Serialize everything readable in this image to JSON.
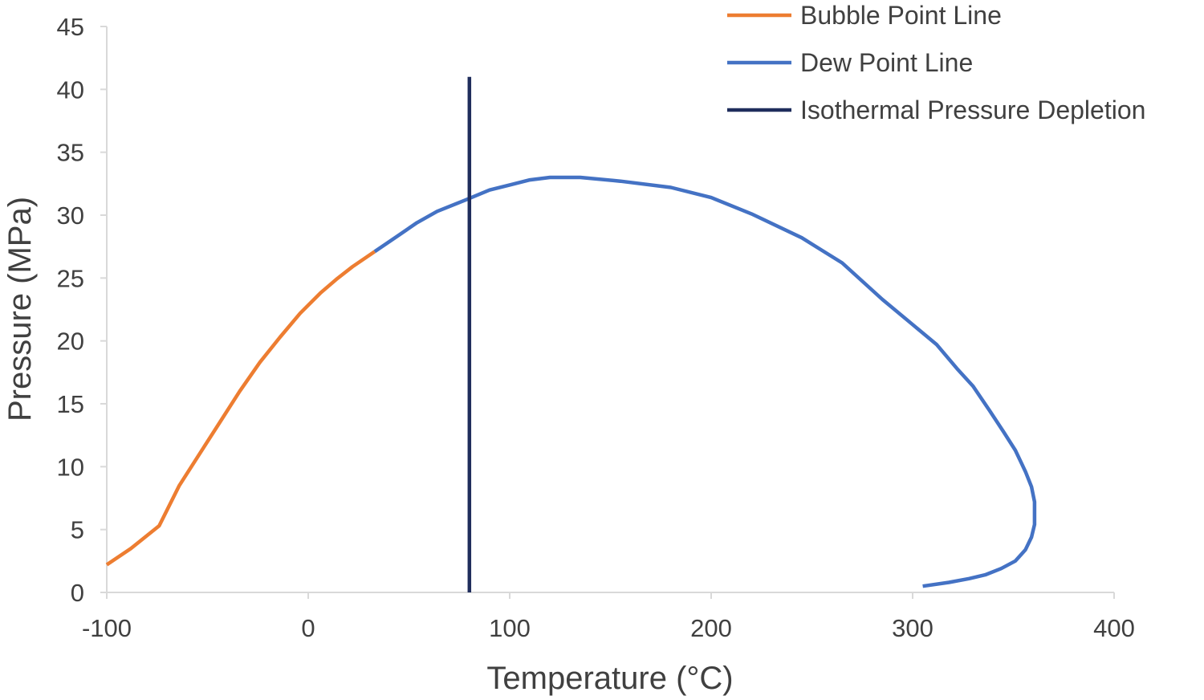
{
  "chart_data": {
    "type": "line",
    "title": "",
    "xlabel": "Temperature (°C)",
    "ylabel": "Pressure (MPa)",
    "xlim": [
      -100,
      400
    ],
    "ylim": [
      0,
      45
    ],
    "xticks": [
      -100,
      0,
      100,
      200,
      300,
      400
    ],
    "xtick_labels": [
      "-100",
      "0",
      "100",
      "200",
      "300",
      "400"
    ],
    "yticks": [
      0,
      5,
      10,
      15,
      20,
      25,
      30,
      35,
      40,
      45
    ],
    "ytick_labels": [
      "0",
      "5",
      "10",
      "15",
      "20",
      "25",
      "30",
      "35",
      "40",
      "45"
    ],
    "grid": false,
    "legend_position": "top-right",
    "series": [
      {
        "name": "Bubble Point Line",
        "color": "#ED7D31",
        "x": [
          -100,
          -88,
          -74,
          -64,
          -52,
          -44,
          -34,
          -24,
          -14,
          -4,
          6,
          14,
          22,
          33
        ],
        "y": [
          2.2,
          3.5,
          5.3,
          8.5,
          11.5,
          13.5,
          16,
          18.3,
          20.3,
          22.2,
          23.8,
          24.9,
          25.9,
          27.1
        ]
      },
      {
        "name": "Dew Point Line",
        "color": "#4472C4",
        "x": [
          33,
          44,
          54,
          64,
          78,
          90,
          100,
          110,
          120,
          135,
          155,
          180,
          200,
          220,
          245,
          265,
          285,
          300,
          312,
          322,
          330,
          338,
          345,
          351,
          356,
          359,
          360.5,
          360.5,
          359,
          356,
          351,
          344,
          336,
          328,
          318,
          305
        ],
        "y": [
          27.1,
          28.3,
          29.4,
          30.3,
          31.2,
          32,
          32.4,
          32.8,
          33,
          33,
          32.7,
          32.2,
          31.4,
          30.1,
          28.2,
          26.2,
          23.3,
          21.3,
          19.7,
          17.8,
          16.4,
          14.5,
          12.8,
          11.3,
          9.6,
          8.4,
          7.2,
          5.4,
          4.4,
          3.4,
          2.5,
          1.9,
          1.4,
          1.1,
          0.8,
          0.5
        ]
      },
      {
        "name": "Isothermal Pressure Depletion",
        "color": "#1F2D5C",
        "x": [
          80,
          80
        ],
        "y": [
          0,
          41
        ]
      }
    ]
  }
}
